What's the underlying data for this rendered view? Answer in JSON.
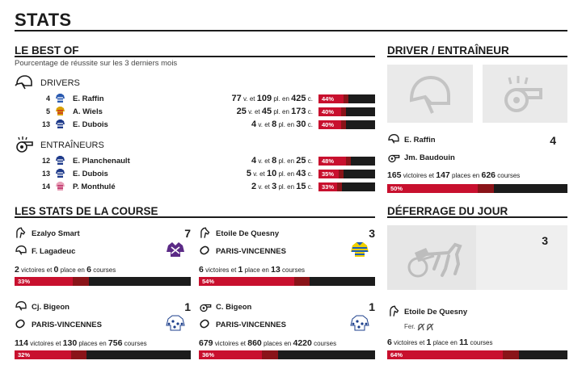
{
  "page_title": "STATS",
  "best_of": {
    "title": "LE BEST OF",
    "subtitle": "Pourcentage de réussite sur les 3 derniers mois",
    "drivers_label": "DRIVERS",
    "trainers_label": "ENTRAÎNEURS",
    "drivers": [
      {
        "rank": "4",
        "name": "E. Raffin",
        "v": "77",
        "pl": "109",
        "c": "425",
        "pct": "44%",
        "frac": 0.44
      },
      {
        "rank": "5",
        "name": "A. Wiels",
        "v": "25",
        "pl": "45",
        "c": "173",
        "pct": "40%",
        "frac": 0.4
      },
      {
        "rank": "13",
        "name": "E. Dubois",
        "v": "4",
        "pl": "8",
        "c": "30",
        "pct": "40%",
        "frac": 0.4
      }
    ],
    "trainers": [
      {
        "rank": "12",
        "name": "E. Planchenault",
        "v": "4",
        "pl": "8",
        "c": "25",
        "pct": "48%",
        "frac": 0.48
      },
      {
        "rank": "13",
        "name": "E. Dubois",
        "v": "5",
        "pl": "10",
        "c": "43",
        "pct": "35%",
        "frac": 0.35
      },
      {
        "rank": "14",
        "name": "P. Monthulé",
        "v": "2",
        "pl": "3",
        "c": "15",
        "pct": "33%",
        "frac": 0.33
      }
    ],
    "unit_v": "v. et",
    "unit_pl": "pl. en",
    "unit_c": "c."
  },
  "driver_trainer": {
    "title": "DRIVER / ENTRAÎNEUR",
    "driver_name": "E. Raffin",
    "driver_num": "4",
    "trainer_name": "Jm. Baudouin",
    "victoires": "165",
    "places": "147",
    "courses": "626",
    "pct": "50%",
    "frac": 0.5
  },
  "course_stats": {
    "title": "LES STATS DE LA COURSE",
    "cells": [
      {
        "top_name": "Ezalyo Smart",
        "sub_name": "F. Lagadeuc",
        "num": "7",
        "v": "2",
        "pl": "0",
        "c": "6",
        "pct": "33%",
        "frac": 0.33,
        "top_icon": "horse-head-icon",
        "sub_icon": "driver-helmet-icon",
        "silk": "purple"
      },
      {
        "top_name": "Etoile De Quesny",
        "sub_name": "PARIS-VINCENNES",
        "num": "3",
        "v": "6",
        "pl": "1",
        "c": "13",
        "pct": "54%",
        "frac": 0.54,
        "top_icon": "horse-head-icon",
        "sub_icon": "racetrack-icon",
        "silk": "yellow-blue"
      },
      {
        "top_name": "Cj. Bigeon",
        "sub_name": "PARIS-VINCENNES",
        "num": "1",
        "v": "114",
        "pl": "130",
        "c": "756",
        "pct": "32%",
        "frac": 0.32,
        "top_icon": "driver-helmet-icon",
        "sub_icon": "racetrack-icon",
        "silk": "white-blue"
      },
      {
        "top_name": "C. Bigeon",
        "sub_name": "PARIS-VINCENNES",
        "num": "1",
        "v": "679",
        "pl": "860",
        "c": "4220",
        "pct": "36%",
        "frac": 0.36,
        "top_icon": "whistle-icon",
        "sub_icon": "racetrack-icon",
        "silk": "white-blue"
      }
    ],
    "word_victoires": "victoires et",
    "word_victoire": "victoires et",
    "word_place": "place en",
    "word_places": "places en",
    "word_courses": "courses"
  },
  "deferrage": {
    "title": "DÉFERRAGE DU JOUR",
    "num": "3",
    "horse": "Etoile De Quesny",
    "fer_label": "Fer.",
    "v": "6",
    "pl": "1",
    "c": "11",
    "pct": "64%",
    "frac": 0.64
  },
  "words": {
    "victoires_et": "victoires et",
    "places_en": "places en",
    "place_en": "place en",
    "courses": "courses"
  },
  "colors": {
    "accent": "#c8102e",
    "accent_dark": "#8a1419",
    "bar_bg": "#1c1c1c"
  }
}
